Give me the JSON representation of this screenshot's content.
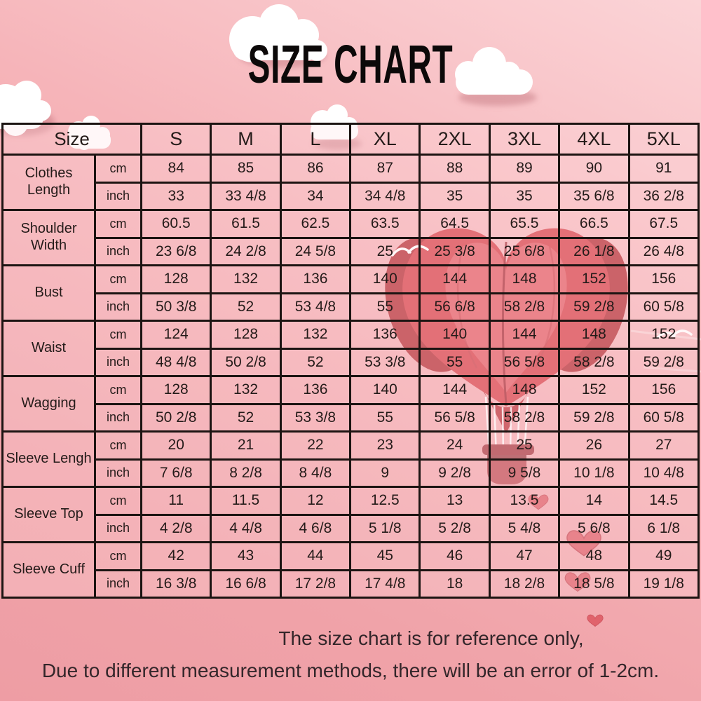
{
  "title": "SIZE CHART",
  "footer": {
    "line1": "The size chart is for reference only,",
    "line2": "Due to different measurement methods, there will be an error of 1-2cm."
  },
  "table": {
    "corner_label": "Size",
    "sizes": [
      "S",
      "M",
      "L",
      "XL",
      "2XL",
      "3XL",
      "4XL",
      "5XL"
    ],
    "unit_labels": [
      "cm",
      "inch"
    ],
    "rows": [
      {
        "label": "Clothes Length",
        "cm": [
          "84",
          "85",
          "86",
          "87",
          "88",
          "89",
          "90",
          "91"
        ],
        "inch": [
          "33",
          "33 4/8",
          "34",
          "34 4/8",
          "35",
          "35",
          "35 6/8",
          "36 2/8"
        ]
      },
      {
        "label": "Shoulder Width",
        "cm": [
          "60.5",
          "61.5",
          "62.5",
          "63.5",
          "64.5",
          "65.5",
          "66.5",
          "67.5"
        ],
        "inch": [
          "23 6/8",
          "24 2/8",
          "24 5/8",
          "25",
          "25 3/8",
          "25 6/8",
          "26 1/8",
          "26 4/8"
        ]
      },
      {
        "label": "Bust",
        "cm": [
          "128",
          "132",
          "136",
          "140",
          "144",
          "148",
          "152",
          "156"
        ],
        "inch": [
          "50 3/8",
          "52",
          "53 4/8",
          "55",
          "56 6/8",
          "58 2/8",
          "59 2/8",
          "60 5/8"
        ]
      },
      {
        "label": "Waist",
        "cm": [
          "124",
          "128",
          "132",
          "136",
          "140",
          "144",
          "148",
          "152"
        ],
        "inch": [
          "48 4/8",
          "50 2/8",
          "52",
          "53 3/8",
          "55",
          "56 5/8",
          "58 2/8",
          "59 2/8"
        ]
      },
      {
        "label": "Wagging",
        "cm": [
          "128",
          "132",
          "136",
          "140",
          "144",
          "148",
          "152",
          "156"
        ],
        "inch": [
          "50 2/8",
          "52",
          "53 3/8",
          "55",
          "56 5/8",
          "58 2/8",
          "59 2/8",
          "60 5/8"
        ]
      },
      {
        "label": "Sleeve Lengh",
        "cm": [
          "20",
          "21",
          "22",
          "23",
          "24",
          "25",
          "26",
          "27"
        ],
        "inch": [
          "7 6/8",
          "8 2/8",
          "8 4/8",
          "9",
          "9 2/8",
          "9 5/8",
          "10 1/8",
          "10 4/8"
        ]
      },
      {
        "label": "Sleeve Top",
        "cm": [
          "11",
          "11.5",
          "12",
          "12.5",
          "13",
          "13.5",
          "14",
          "14.5"
        ],
        "inch": [
          "4 2/8",
          "4 4/8",
          "4 6/8",
          "5 1/8",
          "5 2/8",
          "5 4/8",
          "5 6/8",
          "6 1/8"
        ]
      },
      {
        "label": "Sleeve Cuff",
        "cm": [
          "42",
          "43",
          "44",
          "45",
          "46",
          "47",
          "48",
          "49"
        ],
        "inch": [
          "16 3/8",
          "16 6/8",
          "17 2/8",
          "17 4/8",
          "18",
          "18 2/8",
          "18 5/8",
          "19 1/8"
        ]
      }
    ]
  },
  "decorations": {
    "balloon": "heart-shaped hot air balloon",
    "clouds": "white paper clouds",
    "hearts": "small red hearts",
    "birds": "white birds"
  },
  "colors": {
    "background_top": "#fbd4d7",
    "background_bottom": "#ee9da4",
    "table_border": "#1c1412",
    "text": "#241b19",
    "balloon_red": "#d94a52",
    "balloon_dark": "#b9383f",
    "balloon_light": "#e5646c",
    "heart": "#e0636c",
    "cloud": "#ffffff"
  }
}
